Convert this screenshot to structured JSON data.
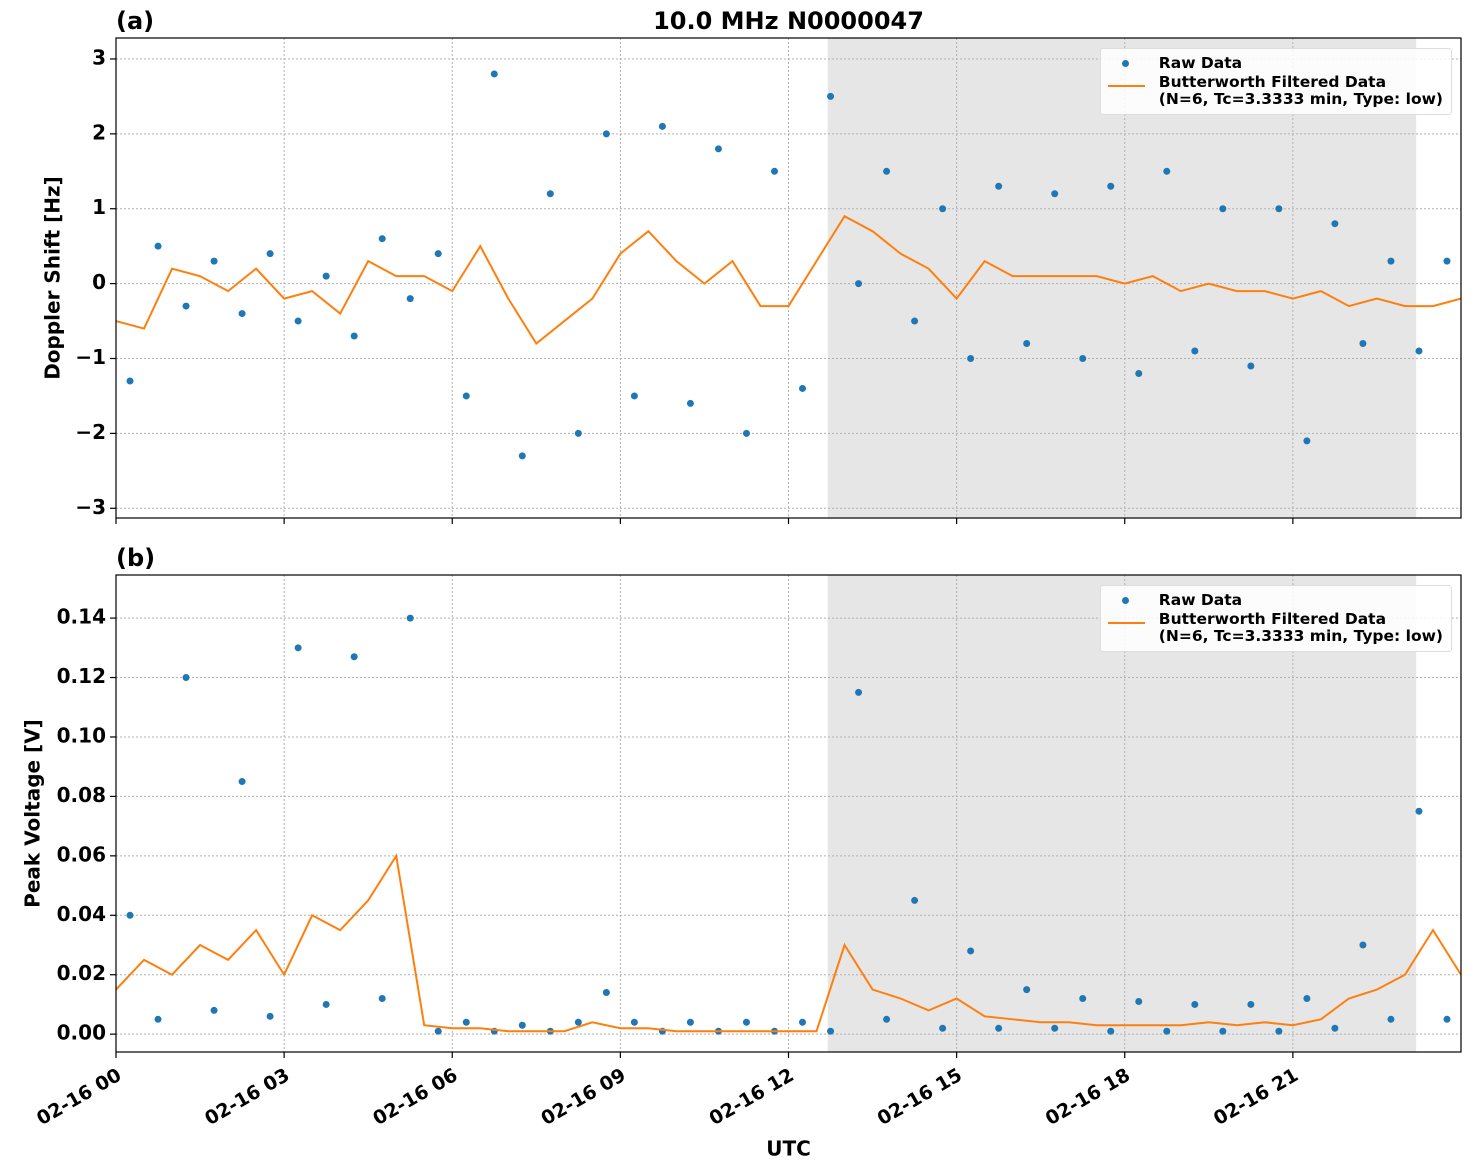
{
  "chart_data": [
    {
      "type": "line",
      "title": "10.0 MHz N0000047",
      "label": "(a)",
      "ylabel": "Doppler Shift [Hz]",
      "xlim": [
        0,
        24
      ],
      "sharex": true,
      "ylim": [
        -3.13,
        3.28
      ],
      "yticks": [
        {
          "value": -3,
          "label": "−3"
        },
        {
          "value": -2,
          "label": "−2"
        },
        {
          "value": -1,
          "label": "−1"
        },
        0,
        1,
        2,
        3
      ],
      "grid": true,
      "legend": "upper right",
      "shaded_span": [
        12.7,
        23.2
      ],
      "shade_color": "#e6e6e6",
      "series": [
        {
          "name": "Raw Data",
          "kind": "scatter",
          "color": "#1f77b4",
          "x": [
            0.25,
            0.75,
            1.25,
            1.75,
            2.25,
            2.75,
            3.25,
            3.75,
            4.25,
            4.75,
            5.25,
            5.75,
            6.25,
            6.75,
            7.25,
            7.75,
            8.25,
            8.75,
            9.25,
            9.75,
            10.25,
            10.75,
            11.25,
            11.75,
            12.25,
            12.75,
            13.25,
            13.75,
            14.25,
            14.75,
            15.25,
            15.75,
            16.25,
            16.75,
            17.25,
            17.75,
            18.25,
            18.75,
            19.25,
            19.75,
            20.25,
            20.75,
            21.25,
            21.75,
            22.25,
            22.75,
            23.25,
            23.75
          ],
          "values": [
            -1.3,
            0.5,
            -0.3,
            0.3,
            -0.4,
            0.4,
            -0.5,
            0.1,
            -0.7,
            0.6,
            -0.2,
            0.4,
            -1.5,
            2.8,
            -2.3,
            1.2,
            -2.0,
            2.0,
            -1.5,
            2.1,
            -1.6,
            1.8,
            -2.0,
            1.5,
            -1.4,
            2.5,
            0.0,
            1.5,
            -0.5,
            1.0,
            -1.0,
            1.3,
            -0.8,
            1.2,
            -1.0,
            1.3,
            -1.2,
            1.5,
            -0.9,
            1.0,
            -1.1,
            1.0,
            -2.1,
            0.8,
            -0.8,
            0.3,
            -0.9,
            0.3
          ]
        },
        {
          "name": "Butterworth Filtered Data\n(N=6, Tc=3.3333 min, Type: low)",
          "kind": "line",
          "color": "#ff7f0e",
          "x": [
            0,
            0.5,
            1,
            1.5,
            2,
            2.5,
            3,
            3.5,
            4,
            4.5,
            5,
            5.5,
            6,
            6.5,
            7,
            7.5,
            8,
            8.5,
            9,
            9.5,
            10,
            10.5,
            11,
            11.5,
            12,
            12.5,
            13,
            13.5,
            14,
            14.5,
            15,
            15.5,
            16,
            16.5,
            17,
            17.5,
            18,
            18.5,
            19,
            19.5,
            20,
            20.5,
            21,
            21.5,
            22,
            22.5,
            23,
            23.5,
            24
          ],
          "values": [
            -0.5,
            -0.6,
            0.2,
            0.1,
            -0.1,
            0.2,
            -0.2,
            -0.1,
            -0.4,
            0.3,
            0.1,
            0.1,
            -0.1,
            0.5,
            -0.2,
            -0.8,
            -0.5,
            -0.2,
            0.4,
            0.7,
            0.3,
            0.0,
            0.3,
            -0.3,
            -0.3,
            0.3,
            0.9,
            0.7,
            0.4,
            0.2,
            -0.2,
            0.3,
            0.1,
            0.1,
            0.1,
            0.1,
            0.0,
            0.1,
            -0.1,
            0.0,
            -0.1,
            -0.1,
            -0.2,
            -0.1,
            -0.3,
            -0.2,
            -0.3,
            -0.3,
            -0.2
          ]
        }
      ]
    },
    {
      "type": "line",
      "label": "(b)",
      "ylabel": "Peak Voltage [V]",
      "xlabel": "UTC",
      "xlim": [
        0,
        24
      ],
      "xticks": [
        {
          "value": 0,
          "label": "02-16 00"
        },
        {
          "value": 3,
          "label": "02-16 03"
        },
        {
          "value": 6,
          "label": "02-16 06"
        },
        {
          "value": 9,
          "label": "02-16 09"
        },
        {
          "value": 12,
          "label": "02-16 12"
        },
        {
          "value": 15,
          "label": "02-16 15"
        },
        {
          "value": 18,
          "label": "02-16 18"
        },
        {
          "value": 21,
          "label": "02-16 21"
        }
      ],
      "ylim": [
        -0.006,
        0.1545
      ],
      "yticks": [
        {
          "value": 0,
          "label": "0.00"
        },
        {
          "value": 0.02,
          "label": "0.02"
        },
        {
          "value": 0.04,
          "label": "0.04"
        },
        {
          "value": 0.06,
          "label": "0.06"
        },
        {
          "value": 0.08,
          "label": "0.08"
        },
        {
          "value": 0.1,
          "label": "0.10"
        },
        {
          "value": 0.12,
          "label": "0.12"
        },
        {
          "value": 0.14,
          "label": "0.14"
        }
      ],
      "grid": true,
      "legend": "upper right",
      "shaded_span": [
        12.7,
        23.2
      ],
      "shade_color": "#e6e6e6",
      "series": [
        {
          "name": "Raw Data",
          "kind": "scatter",
          "color": "#1f77b4",
          "x": [
            0.25,
            0.75,
            1.25,
            1.75,
            2.25,
            2.75,
            3.25,
            3.75,
            4.25,
            4.75,
            5.25,
            5.75,
            6.25,
            6.75,
            7.25,
            7.75,
            8.25,
            8.75,
            9.25,
            9.75,
            10.25,
            10.75,
            11.25,
            11.75,
            12.25,
            12.75,
            13.25,
            13.75,
            14.25,
            14.75,
            15.25,
            15.75,
            16.25,
            16.75,
            17.25,
            17.75,
            18.25,
            18.75,
            19.25,
            19.75,
            20.25,
            20.75,
            21.25,
            21.75,
            22.25,
            22.75,
            23.25,
            23.75
          ],
          "values": [
            0.04,
            0.005,
            0.12,
            0.008,
            0.085,
            0.006,
            0.13,
            0.01,
            0.127,
            0.012,
            0.14,
            0.001,
            0.004,
            0.001,
            0.003,
            0.001,
            0.004,
            0.014,
            0.004,
            0.001,
            0.004,
            0.001,
            0.004,
            0.001,
            0.004,
            0.001,
            0.115,
            0.005,
            0.045,
            0.002,
            0.028,
            0.002,
            0.015,
            0.002,
            0.012,
            0.001,
            0.011,
            0.001,
            0.01,
            0.001,
            0.01,
            0.001,
            0.012,
            0.002,
            0.03,
            0.005,
            0.075,
            0.005
          ]
        },
        {
          "name": "Butterworth Filtered Data\n(N=6, Tc=3.3333 min, Type: low)",
          "kind": "line",
          "color": "#ff7f0e",
          "x": [
            0,
            0.5,
            1,
            1.5,
            2,
            2.5,
            3,
            3.5,
            4,
            4.5,
            5,
            5.5,
            6,
            6.5,
            7,
            7.5,
            8,
            8.5,
            9,
            9.5,
            10,
            10.5,
            11,
            11.5,
            12,
            12.5,
            13,
            13.5,
            14,
            14.5,
            15,
            15.5,
            16,
            16.5,
            17,
            17.5,
            18,
            18.5,
            19,
            19.5,
            20,
            20.5,
            21,
            21.5,
            22,
            22.5,
            23,
            23.5,
            24
          ],
          "values": [
            0.015,
            0.025,
            0.02,
            0.03,
            0.025,
            0.035,
            0.02,
            0.04,
            0.035,
            0.045,
            0.06,
            0.003,
            0.002,
            0.002,
            0.001,
            0.001,
            0.001,
            0.004,
            0.002,
            0.002,
            0.001,
            0.001,
            0.001,
            0.001,
            0.001,
            0.001,
            0.03,
            0.015,
            0.012,
            0.008,
            0.012,
            0.006,
            0.005,
            0.004,
            0.004,
            0.003,
            0.003,
            0.003,
            0.003,
            0.004,
            0.003,
            0.004,
            0.003,
            0.005,
            0.012,
            0.015,
            0.02,
            0.035,
            0.02
          ]
        }
      ]
    }
  ]
}
